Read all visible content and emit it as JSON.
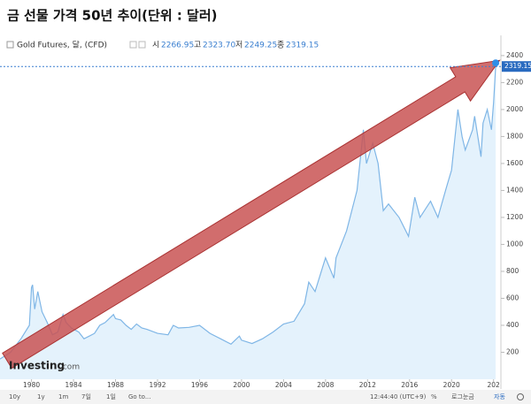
{
  "chart_data": {
    "type": "area-line",
    "title": "금 선물 가격 50년 추이(단위 : 달러)",
    "instrument": "Gold Futures, 달, (CFD)",
    "ohlc": [
      {
        "label": "시",
        "value": "2266.95"
      },
      {
        "label": "고",
        "value": "2323.70"
      },
      {
        "label": "저",
        "value": "2249.25"
      },
      {
        "label": "종",
        "value": "2319.15"
      }
    ],
    "current_price": 2319.15,
    "watermark": [
      "Investing",
      ".com"
    ],
    "color": "#7fb6e6",
    "fill": "#e4f2fc",
    "x": [
      1977,
      1978,
      1979,
      1979.8,
      1980,
      1980.1,
      1980.3,
      1980.6,
      1981,
      1981.5,
      1982,
      1982.5,
      1983,
      1983.3,
      1983.8,
      1984.5,
      1985,
      1985.5,
      1986,
      1986.5,
      1987,
      1987.8,
      1988,
      1988.5,
      1989,
      1989.5,
      1990,
      1990.5,
      1991,
      1992,
      1993,
      1993.5,
      1994,
      1995,
      1996,
      1997,
      1998,
      1999,
      1999.8,
      2000,
      2001,
      2002,
      2003,
      2004,
      2005,
      2006,
      2006.4,
      2007,
      2008,
      2008.8,
      2009,
      2010,
      2011,
      2011.6,
      2011.9,
      2012.5,
      2013,
      2013.5,
      2014,
      2015,
      2015.9,
      2016.5,
      2017,
      2018,
      2018.7,
      2019.5,
      2020,
      2020.6,
      2021,
      2021.3,
      2022,
      2022.2,
      2022.8,
      2023,
      2023.4,
      2023.8,
      2024,
      2024.2
    ],
    "values": [
      150,
      200,
      300,
      400,
      680,
      700,
      520,
      650,
      500,
      420,
      330,
      350,
      480,
      420,
      380,
      350,
      300,
      320,
      340,
      400,
      420,
      480,
      450,
      440,
      400,
      370,
      410,
      380,
      370,
      340,
      330,
      400,
      380,
      385,
      400,
      340,
      300,
      260,
      320,
      290,
      265,
      300,
      350,
      410,
      430,
      560,
      720,
      650,
      900,
      750,
      900,
      1100,
      1400,
      1850,
      1600,
      1750,
      1600,
      1250,
      1300,
      1200,
      1060,
      1350,
      1200,
      1320,
      1200,
      1420,
      1550,
      2000,
      1800,
      1700,
      1850,
      1950,
      1650,
      1900,
      2000,
      1850,
      2050,
      2319.15
    ],
    "xlim": [
      1977,
      2024.7
    ],
    "ylim": [
      0,
      2550
    ],
    "xticks": [
      1980,
      1984,
      1988,
      1992,
      1996,
      2000,
      2004,
      2008,
      2012,
      2016,
      2020,
      {
        "value": 2024,
        "label": "202"
      }
    ],
    "yticks": [
      200,
      400,
      600,
      800,
      1000,
      1200,
      1400,
      1600,
      1800,
      2000,
      2200,
      2400
    ]
  },
  "toolbar": {
    "left": [
      "10y",
      "1y",
      "1m",
      "7일",
      "1일",
      "Go to..."
    ],
    "right": [
      "12:44:40 (UTC+9)",
      "%",
      "로그눈금",
      "자동"
    ]
  }
}
